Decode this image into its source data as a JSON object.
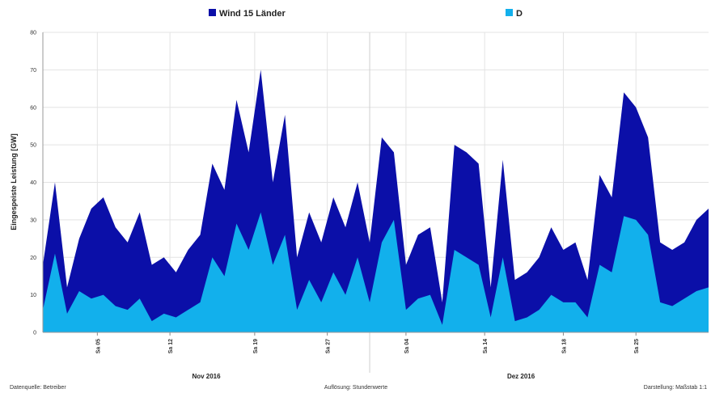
{
  "chart_data": {
    "type": "area",
    "ylabel": "Eingespeiste Leistung [GW]",
    "ylim": [
      0,
      80
    ],
    "yticks": [
      0,
      10,
      20,
      30,
      40,
      50,
      60,
      70,
      80
    ],
    "xlim": [
      0,
      55
    ],
    "grid": true,
    "legend_position": "top",
    "x_tick_labels": [
      "Sa 05",
      "Sa 12",
      "Sa 19",
      "Sa 27",
      "Sa 04",
      "Sa 14",
      "Sa 18",
      "Sa 25"
    ],
    "x_tick_positions": [
      4.5,
      10.5,
      17.5,
      23.5,
      30,
      36.5,
      43,
      49
    ],
    "month_labels": [
      "Nov 2016",
      "Dez 2016"
    ],
    "month_positions": [
      13.5,
      39.5
    ],
    "month_divider": 27,
    "x": [
      0,
      1,
      2,
      3,
      4,
      5,
      6,
      7,
      8,
      9,
      10,
      11,
      12,
      13,
      14,
      15,
      16,
      17,
      18,
      19,
      20,
      21,
      22,
      23,
      24,
      25,
      26,
      27,
      28,
      29,
      30,
      31,
      32,
      33,
      34,
      35,
      36,
      37,
      38,
      39,
      40,
      41,
      42,
      43,
      44,
      45,
      46,
      47,
      48,
      49,
      50,
      51,
      52,
      53,
      54,
      55
    ],
    "series": [
      {
        "name": "Wind 15 Länder",
        "color": "#0b0fa8",
        "values": [
          18,
          40,
          12,
          25,
          33,
          36,
          28,
          24,
          32,
          18,
          20,
          16,
          22,
          26,
          45,
          38,
          62,
          48,
          70,
          40,
          58,
          20,
          32,
          24,
          36,
          28,
          40,
          24,
          52,
          48,
          18,
          26,
          28,
          8,
          50,
          48,
          45,
          12,
          46,
          14,
          16,
          20,
          28,
          22,
          24,
          14,
          42,
          36,
          64,
          60,
          52,
          24,
          22,
          24,
          30,
          33
        ]
      },
      {
        "name": "D",
        "color": "#12b0ec",
        "values": [
          6,
          21,
          5,
          11,
          9,
          10,
          7,
          6,
          9,
          3,
          5,
          4,
          6,
          8,
          20,
          15,
          29,
          22,
          32,
          18,
          26,
          6,
          14,
          8,
          16,
          10,
          20,
          8,
          24,
          30,
          6,
          9,
          10,
          2,
          22,
          20,
          18,
          4,
          20,
          3,
          4,
          6,
          10,
          8,
          8,
          4,
          18,
          16,
          31,
          30,
          26,
          8,
          7,
          9,
          11,
          12
        ]
      }
    ]
  },
  "footer": {
    "left": "Datenquelle: Betreiber",
    "center": "Auflösung: Stundenwerte",
    "right": "Darstellung: Maßstab 1:1"
  }
}
